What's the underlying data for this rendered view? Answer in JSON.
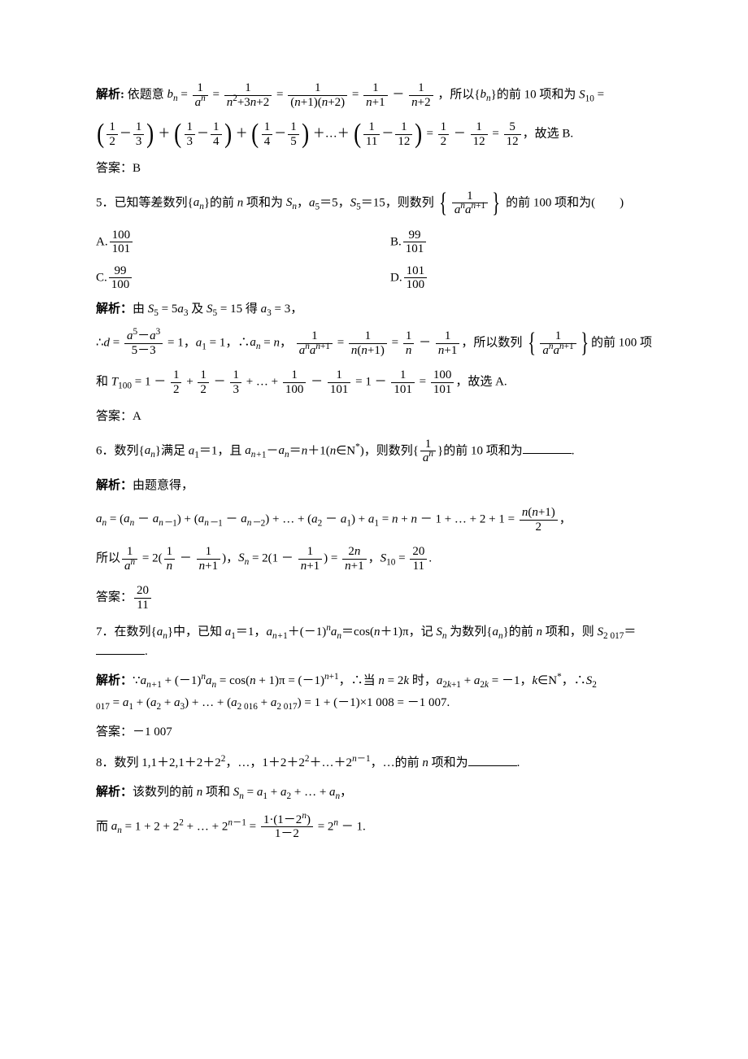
{
  "q4": {
    "expl_label": "解析:",
    "ans_label": "答案：",
    "answer": "B"
  },
  "q5": {
    "num": "5．",
    "stem_a": "已知等差数列{",
    "stem_b": "}的前 ",
    "stem_c": " 项和为 ",
    "stem_d": "，",
    "stem_e": "＝5，",
    "stem_f": "＝15，则数列",
    "stem_g": "的前 100 项和为(　　)",
    "optA": "A.",
    "optB": "B.",
    "optC": "C.",
    "optD": "D.",
    "A_num": "100",
    "A_den": "101",
    "B_num": "99",
    "B_den": "101",
    "C_num": "99",
    "C_den": "100",
    "D_num": "101",
    "D_den": "100",
    "expl_label": "解析：",
    "ans_label": "答案：",
    "answer": "A"
  },
  "q6": {
    "num": "6．",
    "expl_label": "解析：",
    "ans_label": "答案：",
    "ans_num": "20",
    "ans_den": "11"
  },
  "q7": {
    "num": "7．",
    "expl_label": "解析：",
    "ans_label": "答案：",
    "answer": "－1 007"
  },
  "q8": {
    "num": "8．",
    "expl_label": "解析："
  }
}
